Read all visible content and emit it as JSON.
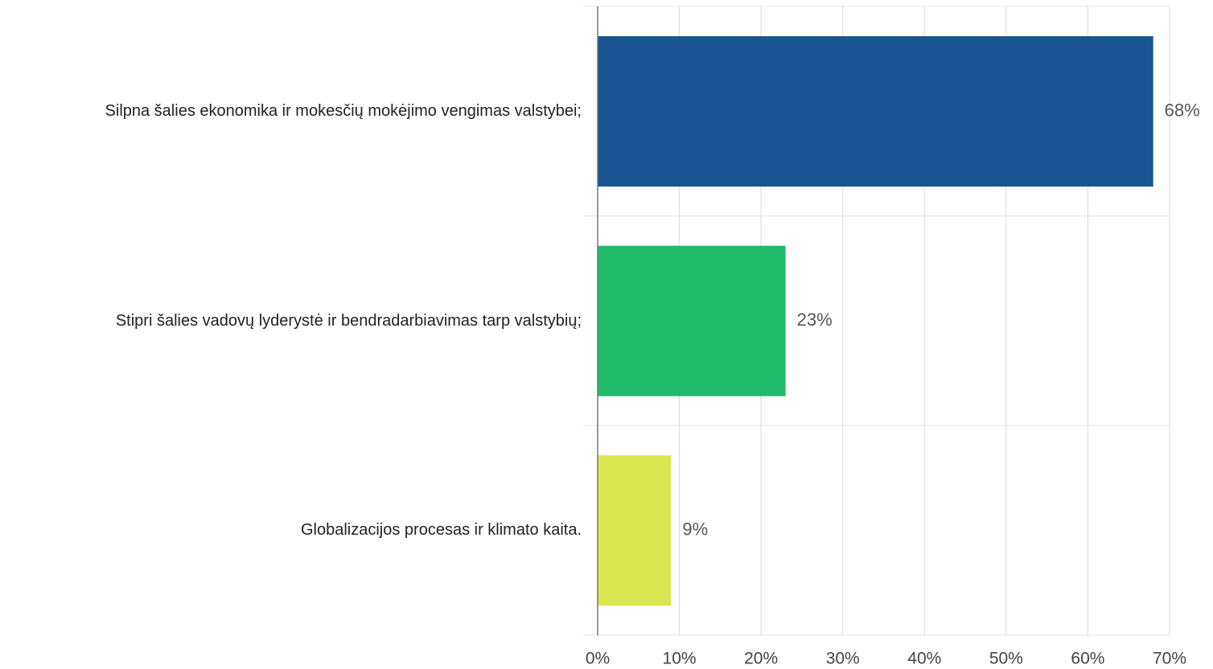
{
  "chart_data": {
    "type": "bar",
    "orientation": "horizontal",
    "categories": [
      "Silpna šalies ekonomika ir mokesčių mokėjimo vengimas valstybei;",
      "Stipri šalies vadovų lyderystė ir bendradarbiavimas tarp valstybių;",
      "Globalizacijos procesas ir klimato kaita."
    ],
    "values": [
      68,
      23,
      9
    ],
    "value_labels": [
      "68%",
      "23%",
      "9%"
    ],
    "colors": [
      "#1a5493",
      "#1fba6b",
      "#d9e650"
    ],
    "xlim": [
      0,
      70
    ],
    "xticks": [
      {
        "value": 0,
        "label": "0%"
      },
      {
        "value": 10,
        "label": "10%"
      },
      {
        "value": 20,
        "label": "20%"
      },
      {
        "value": 30,
        "label": "30%"
      },
      {
        "value": 40,
        "label": "40%"
      },
      {
        "value": 50,
        "label": "50%"
      },
      {
        "value": 60,
        "label": "60%"
      },
      {
        "value": 70,
        "label": "70%"
      }
    ],
    "grid": true
  }
}
